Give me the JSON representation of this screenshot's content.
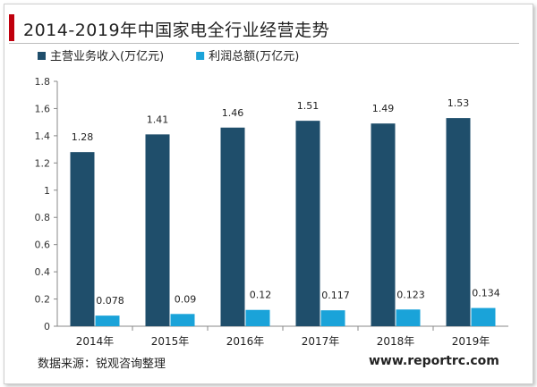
{
  "title": "2014-2019年中国家电全行业经营走势",
  "footer": {
    "source": "数据来源：锐观咨询整理",
    "website": "www.reportrc.com"
  },
  "colors": {
    "accent": "#c0000d",
    "series1": "#1f4e6b",
    "series2": "#1aa3d9"
  },
  "chart_data": {
    "type": "bar",
    "categories": [
      "2014年",
      "2015年",
      "2016年",
      "2017年",
      "2018年",
      "2019年"
    ],
    "series": [
      {
        "name": "主营业务收入(万亿元)",
        "values": [
          1.28,
          1.41,
          1.46,
          1.51,
          1.49,
          1.53
        ],
        "labels": [
          "1.28",
          "1.41",
          "1.46",
          "1.51",
          "1.49",
          "1.53"
        ]
      },
      {
        "name": "利润总额(万亿元)",
        "values": [
          0.078,
          0.09,
          0.12,
          0.117,
          0.123,
          0.134
        ],
        "labels": [
          "0.078",
          "0.09",
          "0.12",
          "0.117",
          "0.123",
          "0.134"
        ]
      }
    ],
    "ylim": [
      0,
      1.8
    ],
    "yticks": [
      "0",
      "0.2",
      "0.4",
      "0.6",
      "0.8",
      "1",
      "1.2",
      "1.4",
      "1.6",
      "1.8"
    ],
    "legend_position": "top-left",
    "grid": false
  }
}
